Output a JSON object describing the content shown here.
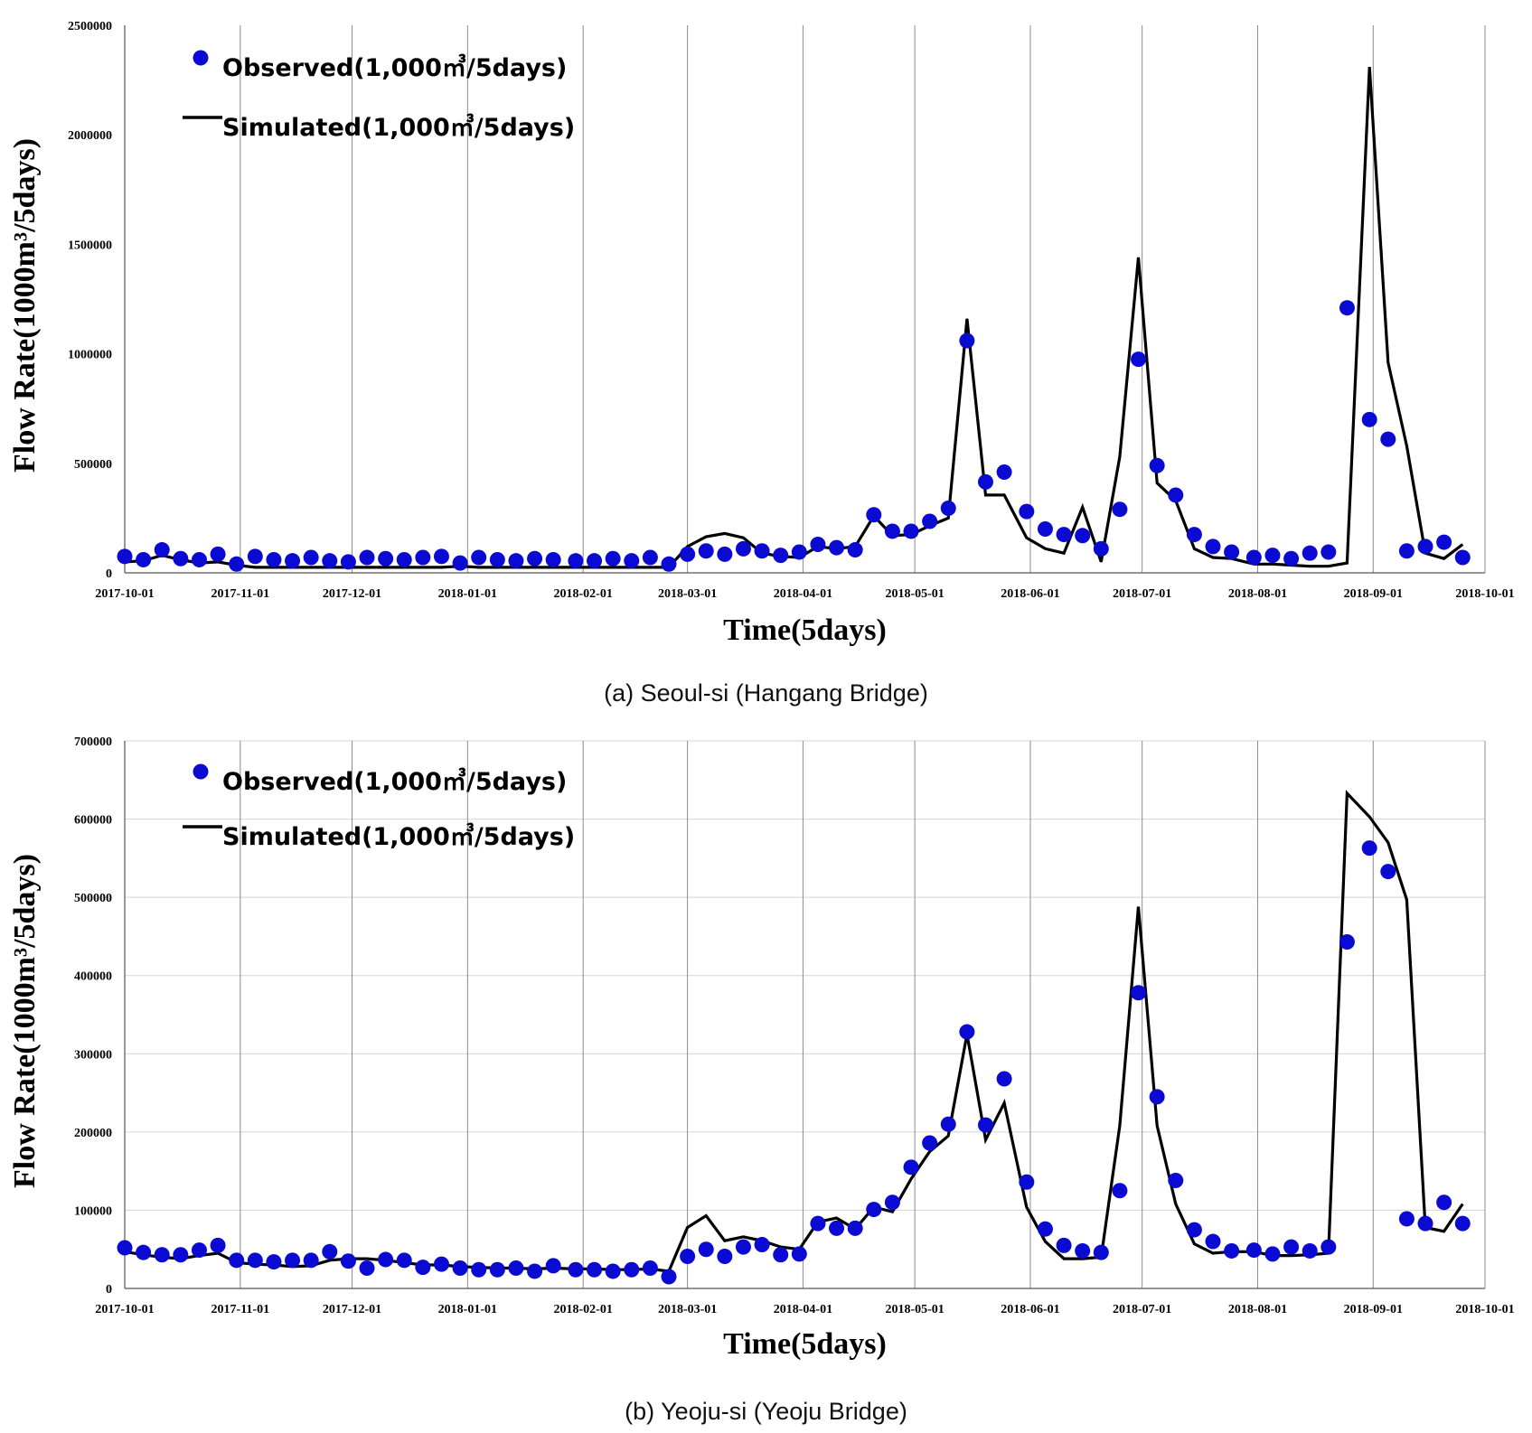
{
  "chart_data": [
    {
      "type": "line",
      "caption": "(a) Seoul-si (Hangang Bridge)",
      "xlabel": "Time(5days)",
      "ylabel": "Flow Rate(1000m³/5days)",
      "x_ticks": [
        "2017-10-01",
        "2017-11-01",
        "2017-12-01",
        "2018-01-01",
        "2018-02-01",
        "2018-03-01",
        "2018-04-01",
        "2018-05-01",
        "2018-06-01",
        "2018-07-01",
        "2018-08-01",
        "2018-09-01",
        "2018-10-01"
      ],
      "y_ticks": [
        "0",
        "500000",
        "1000000",
        "1500000",
        "2000000",
        "2500000"
      ],
      "ylim": [
        0,
        2500000
      ],
      "xlim": [
        "2017-10-01",
        "2018-10-01"
      ],
      "grid": "vertical",
      "legend_position": "top-left",
      "legend": [
        "Observed(1,000㎥/5days)",
        "Simulated(1,000㎥/5days)"
      ],
      "colors": {
        "observed": "#0a0ad2",
        "simulated": "#000000"
      },
      "series": [
        {
          "name": "Observed(1,000㎥/5days)",
          "style": "markers",
          "x": [
            "2017-10-01",
            "2017-10-06",
            "2017-10-11",
            "2017-10-16",
            "2017-10-21",
            "2017-10-26",
            "2017-10-31",
            "2017-11-05",
            "2017-11-10",
            "2017-11-15",
            "2017-11-20",
            "2017-11-25",
            "2017-11-30",
            "2017-12-05",
            "2017-12-10",
            "2017-12-15",
            "2017-12-20",
            "2017-12-25",
            "2017-12-30",
            "2018-01-04",
            "2018-01-09",
            "2018-01-14",
            "2018-01-19",
            "2018-01-24",
            "2018-01-30",
            "2018-02-04",
            "2018-02-09",
            "2018-02-14",
            "2018-02-19",
            "2018-02-24",
            "2018-03-01",
            "2018-03-06",
            "2018-03-11",
            "2018-03-16",
            "2018-03-21",
            "2018-03-26",
            "2018-03-31",
            "2018-04-05",
            "2018-04-10",
            "2018-04-15",
            "2018-04-20",
            "2018-04-25",
            "2018-04-30",
            "2018-05-05",
            "2018-05-10",
            "2018-05-15",
            "2018-05-20",
            "2018-05-25",
            "2018-05-31",
            "2018-06-05",
            "2018-06-10",
            "2018-06-15",
            "2018-06-20",
            "2018-06-25",
            "2018-06-30",
            "2018-07-05",
            "2018-07-10",
            "2018-07-15",
            "2018-07-20",
            "2018-07-25",
            "2018-07-31",
            "2018-08-05",
            "2018-08-10",
            "2018-08-15",
            "2018-08-20",
            "2018-08-25",
            "2018-08-31",
            "2018-09-05",
            "2018-09-10",
            "2018-09-15",
            "2018-09-20",
            "2018-09-25"
          ],
          "values": [
            75000,
            60000,
            105000,
            65000,
            60000,
            85000,
            40000,
            75000,
            60000,
            55000,
            70000,
            55000,
            50000,
            70000,
            65000,
            60000,
            70000,
            75000,
            45000,
            70000,
            60000,
            55000,
            65000,
            60000,
            55000,
            55000,
            65000,
            55000,
            70000,
            40000,
            85000,
            100000,
            85000,
            110000,
            100000,
            80000,
            95000,
            130000,
            115000,
            105000,
            265000,
            190000,
            190000,
            235000,
            295000,
            1060000,
            415000,
            460000,
            280000,
            200000,
            175000,
            170000,
            110000,
            290000,
            975000,
            490000,
            355000,
            175000,
            120000,
            95000,
            70000,
            80000,
            65000,
            90000,
            95000,
            1210000,
            700000,
            610000,
            100000,
            120000,
            140000,
            70000
          ]
        },
        {
          "name": "Simulated(1,000㎥/5days)",
          "style": "line",
          "x": [
            "2017-10-01",
            "2017-10-06",
            "2017-10-11",
            "2017-10-16",
            "2017-10-21",
            "2017-10-26",
            "2017-10-31",
            "2017-11-05",
            "2017-11-10",
            "2017-11-15",
            "2017-11-20",
            "2017-11-25",
            "2017-11-30",
            "2017-12-05",
            "2017-12-10",
            "2017-12-15",
            "2017-12-20",
            "2017-12-25",
            "2017-12-30",
            "2018-01-04",
            "2018-01-09",
            "2018-01-14",
            "2018-01-19",
            "2018-01-24",
            "2018-01-30",
            "2018-02-04",
            "2018-02-09",
            "2018-02-14",
            "2018-02-19",
            "2018-02-24",
            "2018-03-01",
            "2018-03-06",
            "2018-03-11",
            "2018-03-16",
            "2018-03-21",
            "2018-03-26",
            "2018-03-31",
            "2018-04-05",
            "2018-04-10",
            "2018-04-15",
            "2018-04-20",
            "2018-04-25",
            "2018-04-30",
            "2018-05-05",
            "2018-05-10",
            "2018-05-15",
            "2018-05-20",
            "2018-05-25",
            "2018-05-31",
            "2018-06-05",
            "2018-06-10",
            "2018-06-15",
            "2018-06-20",
            "2018-06-25",
            "2018-06-30",
            "2018-07-05",
            "2018-07-10",
            "2018-07-15",
            "2018-07-20",
            "2018-07-25",
            "2018-07-31",
            "2018-08-05",
            "2018-08-10",
            "2018-08-15",
            "2018-08-20",
            "2018-08-25",
            "2018-08-31",
            "2018-09-05",
            "2018-09-10",
            "2018-09-15",
            "2018-09-20",
            "2018-09-25"
          ],
          "values": [
            50000,
            55000,
            80000,
            60000,
            45000,
            50000,
            35000,
            25000,
            25000,
            25000,
            25000,
            25000,
            25000,
            25000,
            25000,
            25000,
            25000,
            25000,
            30000,
            25000,
            25000,
            25000,
            25000,
            25000,
            25000,
            25000,
            25000,
            25000,
            25000,
            25000,
            120000,
            165000,
            180000,
            160000,
            90000,
            75000,
            70000,
            120000,
            110000,
            120000,
            260000,
            170000,
            175000,
            215000,
            250000,
            1160000,
            355000,
            355000,
            160000,
            110000,
            90000,
            300000,
            50000,
            530000,
            1440000,
            410000,
            330000,
            110000,
            70000,
            65000,
            40000,
            40000,
            35000,
            30000,
            30000,
            45000,
            2310000,
            960000,
            580000,
            90000,
            65000,
            130000
          ]
        }
      ]
    },
    {
      "type": "line",
      "caption": "(b) Yeoju-si (Yeoju Bridge)",
      "xlabel": "Time(5days)",
      "ylabel": "Flow Rate(1000m³/5days)",
      "x_ticks": [
        "2017-10-01",
        "2017-11-01",
        "2017-12-01",
        "2018-01-01",
        "2018-02-01",
        "2018-03-01",
        "2018-04-01",
        "2018-05-01",
        "2018-06-01",
        "2018-07-01",
        "2018-08-01",
        "2018-09-01",
        "2018-10-01"
      ],
      "y_ticks": [
        "0",
        "100000",
        "200000",
        "300000",
        "400000",
        "500000",
        "600000",
        "700000"
      ],
      "ylim": [
        0,
        700000
      ],
      "xlim": [
        "2017-10-01",
        "2018-10-01"
      ],
      "grid": "both",
      "legend_position": "top-left",
      "legend": [
        "Observed(1,000㎥/5days)",
        "Simulated(1,000㎥/5days)"
      ],
      "colors": {
        "observed": "#0a0ad2",
        "simulated": "#000000"
      },
      "series": [
        {
          "name": "Observed(1,000㎥/5days)",
          "style": "markers",
          "x": [
            "2017-10-01",
            "2017-10-06",
            "2017-10-11",
            "2017-10-16",
            "2017-10-21",
            "2017-10-26",
            "2017-10-31",
            "2017-11-05",
            "2017-11-10",
            "2017-11-15",
            "2017-11-20",
            "2017-11-25",
            "2017-11-30",
            "2017-12-05",
            "2017-12-10",
            "2017-12-15",
            "2017-12-20",
            "2017-12-25",
            "2017-12-30",
            "2018-01-04",
            "2018-01-09",
            "2018-01-14",
            "2018-01-19",
            "2018-01-24",
            "2018-01-30",
            "2018-02-04",
            "2018-02-09",
            "2018-02-14",
            "2018-02-19",
            "2018-02-24",
            "2018-03-01",
            "2018-03-06",
            "2018-03-11",
            "2018-03-16",
            "2018-03-21",
            "2018-03-26",
            "2018-03-31",
            "2018-04-05",
            "2018-04-10",
            "2018-04-15",
            "2018-04-20",
            "2018-04-25",
            "2018-04-30",
            "2018-05-05",
            "2018-05-10",
            "2018-05-15",
            "2018-05-20",
            "2018-05-25",
            "2018-05-31",
            "2018-06-05",
            "2018-06-10",
            "2018-06-15",
            "2018-06-20",
            "2018-06-25",
            "2018-06-30",
            "2018-07-05",
            "2018-07-10",
            "2018-07-15",
            "2018-07-20",
            "2018-07-25",
            "2018-07-31",
            "2018-08-05",
            "2018-08-10",
            "2018-08-15",
            "2018-08-20",
            "2018-08-25",
            "2018-08-31",
            "2018-09-05",
            "2018-09-10",
            "2018-09-15",
            "2018-09-20",
            "2018-09-25"
          ],
          "values": [
            52000,
            46000,
            43000,
            43000,
            49000,
            55000,
            36000,
            36000,
            34000,
            36000,
            36000,
            47000,
            35000,
            26000,
            37000,
            36000,
            27000,
            31000,
            26000,
            24000,
            24000,
            26000,
            22000,
            29000,
            24000,
            24000,
            22000,
            24000,
            26000,
            15000,
            41000,
            50000,
            41000,
            53000,
            56000,
            43000,
            44000,
            83000,
            77000,
            77000,
            101000,
            110000,
            155000,
            186000,
            210000,
            328000,
            209000,
            268000,
            136000,
            76000,
            55000,
            48000,
            46000,
            125000,
            378000,
            245000,
            138000,
            75000,
            60000,
            48000,
            49000,
            44000,
            53000,
            48000,
            53000,
            443000,
            563000,
            533000,
            89000,
            83000,
            110000,
            83000
          ]
        },
        {
          "name": "Simulated(1,000㎥/5days)",
          "style": "line",
          "x": [
            "2017-10-01",
            "2017-10-06",
            "2017-10-11",
            "2017-10-16",
            "2017-10-21",
            "2017-10-26",
            "2017-10-31",
            "2017-11-05",
            "2017-11-10",
            "2017-11-15",
            "2017-11-20",
            "2017-11-25",
            "2017-11-30",
            "2017-12-05",
            "2017-12-10",
            "2017-12-15",
            "2017-12-20",
            "2017-12-25",
            "2017-12-30",
            "2018-01-04",
            "2018-01-09",
            "2018-01-14",
            "2018-01-19",
            "2018-01-24",
            "2018-01-30",
            "2018-02-04",
            "2018-02-09",
            "2018-02-14",
            "2018-02-19",
            "2018-02-24",
            "2018-03-01",
            "2018-03-06",
            "2018-03-11",
            "2018-03-16",
            "2018-03-21",
            "2018-03-26",
            "2018-03-31",
            "2018-04-05",
            "2018-04-10",
            "2018-04-15",
            "2018-04-20",
            "2018-04-25",
            "2018-04-30",
            "2018-05-05",
            "2018-05-10",
            "2018-05-15",
            "2018-05-20",
            "2018-05-25",
            "2018-05-31",
            "2018-06-05",
            "2018-06-10",
            "2018-06-15",
            "2018-06-20",
            "2018-06-25",
            "2018-06-30",
            "2018-07-05",
            "2018-07-10",
            "2018-07-15",
            "2018-07-20",
            "2018-07-25",
            "2018-07-31",
            "2018-08-05",
            "2018-08-10",
            "2018-08-15",
            "2018-08-20",
            "2018-08-25",
            "2018-08-31",
            "2018-09-05",
            "2018-09-10",
            "2018-09-15",
            "2018-09-20",
            "2018-09-25"
          ],
          "values": [
            47000,
            43000,
            40000,
            38000,
            42000,
            45000,
            33000,
            31000,
            30000,
            28000,
            29000,
            36000,
            38000,
            38000,
            36000,
            33000,
            30000,
            30000,
            28000,
            27000,
            26000,
            26000,
            25000,
            26000,
            25000,
            25000,
            24000,
            24000,
            25000,
            22000,
            78000,
            93000,
            61000,
            66000,
            61000,
            53000,
            50000,
            85000,
            90000,
            76000,
            104000,
            98000,
            140000,
            175000,
            195000,
            325000,
            190000,
            237000,
            104000,
            60000,
            38000,
            38000,
            40000,
            208000,
            488000,
            208000,
            108000,
            57000,
            45000,
            47000,
            47000,
            42000,
            42000,
            43000,
            45000,
            633000,
            603000,
            570000,
            497000,
            78000,
            73000,
            108000
          ]
        }
      ]
    }
  ]
}
